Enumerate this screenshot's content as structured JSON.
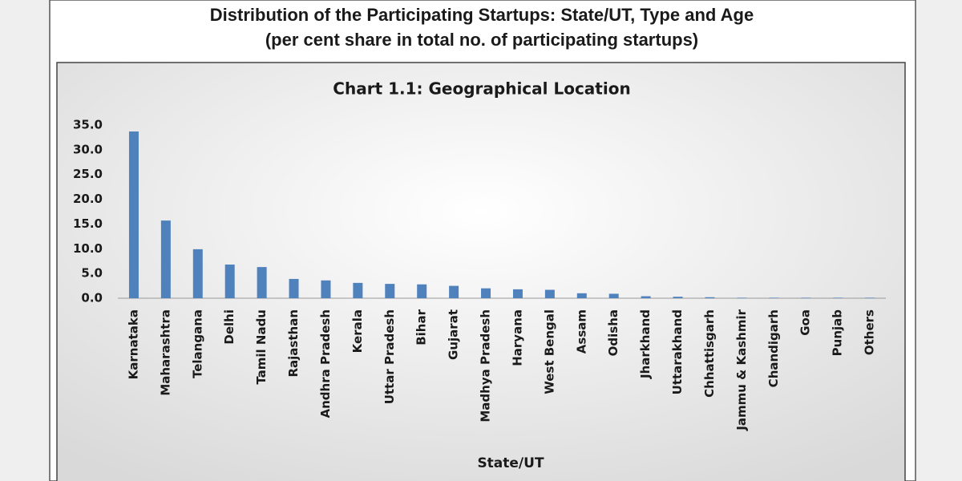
{
  "heading": {
    "title": "Distribution of the Participating Startups: State/UT, Type and Age",
    "subtitle": "(per cent share in total no. of participating startups)"
  },
  "chart_data": {
    "type": "bar",
    "title": "Chart 1.1: Geographical Location",
    "x_label": "State/UT",
    "categories": [
      "Karnataka",
      "Maharashtra",
      "Telangana",
      "Delhi",
      "Tamil Nadu",
      "Rajasthan",
      "Andhra Pradesh",
      "Kerala",
      "Uttar Pradesh",
      "Bihar",
      "Gujarat",
      "Madhya Pradesh",
      "Haryana",
      "West Bengal",
      "Assam",
      "Odisha",
      "Jharkhand",
      "Uttarakhand",
      "Chhattisgarh",
      "Jammu & Kashmir",
      "Chandigarh",
      "Goa",
      "Punjab",
      "Others"
    ],
    "values": [
      33.7,
      15.7,
      9.9,
      6.8,
      6.3,
      3.9,
      3.6,
      3.1,
      2.9,
      2.8,
      2.5,
      2.0,
      1.8,
      1.7,
      1.0,
      0.9,
      0.4,
      0.3,
      0.2,
      0.1,
      0.1,
      0.1,
      0.1,
      0.1
    ],
    "color": "#4f81bd",
    "ylim": [
      0,
      35
    ],
    "yticks": [
      {
        "value": 0,
        "label": "0.0"
      },
      {
        "value": 5,
        "label": "5.0"
      },
      {
        "value": 10,
        "label": "10.0"
      },
      {
        "value": 15,
        "label": "15.0"
      },
      {
        "value": 20,
        "label": "20.0"
      },
      {
        "value": 25,
        "label": "25.0"
      },
      {
        "value": 30,
        "label": "30.0"
      },
      {
        "value": 35,
        "label": "35.0"
      }
    ],
    "grid": false
  }
}
